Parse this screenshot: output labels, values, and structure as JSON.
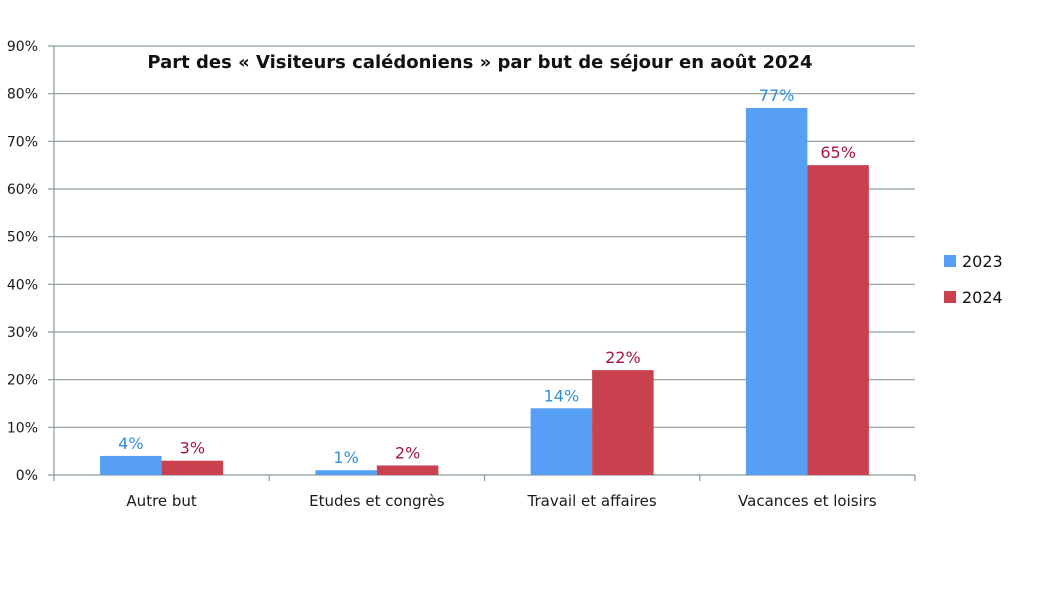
{
  "chart_data": {
    "type": "bar",
    "title": "Part des « Visiteurs calédoniens » par but de séjour en août 2024",
    "xlabel": "",
    "ylabel": "",
    "ylim": [
      0,
      90
    ],
    "yticks": [
      "0%",
      "10%",
      "20%",
      "30%",
      "40%",
      "50%",
      "60%",
      "70%",
      "80%",
      "90%"
    ],
    "grid": true,
    "legend_position": "right",
    "categories": [
      "Autre but",
      "Etudes et congrès",
      "Travail et affaires",
      "Vacances et loisirs"
    ],
    "series": [
      {
        "name": "2023",
        "values": [
          4,
          1,
          14,
          77
        ],
        "labels": [
          "4%",
          "1%",
          "14%",
          "77%"
        ],
        "color": "#579ff5",
        "label_color": "#2f8fdc"
      },
      {
        "name": "2024",
        "values": [
          3,
          2,
          22,
          65
        ],
        "labels": [
          "3%",
          "2%",
          "22%",
          "65%"
        ],
        "color": "#c9404f",
        "label_color": "#a51449"
      }
    ]
  }
}
